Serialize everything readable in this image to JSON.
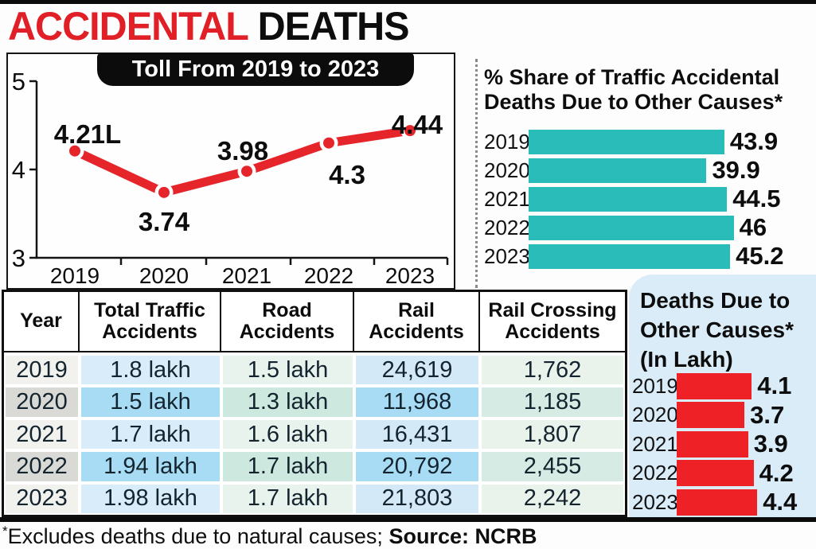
{
  "page": {
    "title_accent": "ACCIDENTAL",
    "title_rest": "DEATHS",
    "footer_asterisk": "*",
    "footer_note": "Excludes deaths due to natural causes; ",
    "footer_source": "Source: NCRB"
  },
  "colors": {
    "headline_red": "#e01f26",
    "line_red": "#e6252b",
    "teal_bar": "#2abcb8",
    "red_bar": "#ee2127",
    "panel_blue": "#d9ecf8",
    "pill_black": "#0c0c0c",
    "table_blue_light": "#d8ecfa",
    "table_blue_dark": "#a7dcf4",
    "table_green_light": "#e8f3ee",
    "table_green_dark": "#cde8df"
  },
  "chart_data": [
    {
      "type": "line",
      "title": "Toll From 2019 to 2023",
      "x": [
        "2019",
        "2020",
        "2021",
        "2022",
        "2023"
      ],
      "values": [
        4.21,
        3.74,
        3.98,
        4.3,
        4.44
      ],
      "point_labels": [
        "4.21L",
        "3.74",
        "3.98",
        "4.3",
        "4.44"
      ],
      "unit": "lakh deaths",
      "ylim": [
        3,
        5
      ],
      "yticks": [
        5,
        4,
        3
      ],
      "grid": false,
      "line_color": "#e6252b"
    },
    {
      "type": "bar",
      "orientation": "horizontal",
      "title": "% Share of Traffic Accidental Deaths Due to Other Causes*",
      "title_lines": [
        "% Share of Traffic Accidental",
        "Deaths Due to Other Causes*"
      ],
      "categories": [
        "2019",
        "2020",
        "2021",
        "2022",
        "2023"
      ],
      "values": [
        43.9,
        39.9,
        44.5,
        46,
        45.2
      ],
      "value_labels": [
        "43.9",
        "39.9",
        "44.5",
        "46",
        "45.2"
      ],
      "xlim": [
        0,
        50
      ],
      "bar_color": "#2abcb8"
    },
    {
      "type": "table",
      "columns": [
        "Year",
        "Total Traffic Accidents",
        "Road Accidents",
        "Rail Accidents",
        "Rail Crossing Accidents"
      ],
      "rows": [
        [
          "2019",
          "1.8 lakh",
          "1.5 lakh",
          "24,619",
          "1,762"
        ],
        [
          "2020",
          "1.5 lakh",
          "1.3 lakh",
          "11,968",
          "1,185"
        ],
        [
          "2021",
          "1.7 lakh",
          "1.6 lakh",
          "16,431",
          "1,807"
        ],
        [
          "2022",
          "1.94 lakh",
          "1.7 lakh",
          "20,792",
          "2,455"
        ],
        [
          "2023",
          "1.98 lakh",
          "1.7 lakh",
          "21,803",
          "2,242"
        ]
      ]
    },
    {
      "type": "bar",
      "orientation": "horizontal",
      "title": "Deaths Due to Other Causes* (In Lakh)",
      "title_lines": [
        "Deaths Due to",
        "Other Causes*",
        "(In Lakh)"
      ],
      "categories": [
        "2019",
        "2020",
        "2021",
        "2022",
        "2023"
      ],
      "values": [
        4.1,
        3.7,
        3.9,
        4.2,
        4.4
      ],
      "value_labels": [
        "4.1",
        "3.7",
        "3.9",
        "4.2",
        "4.4"
      ],
      "xlim": [
        0,
        5
      ],
      "bar_color": "#ee2127"
    }
  ]
}
